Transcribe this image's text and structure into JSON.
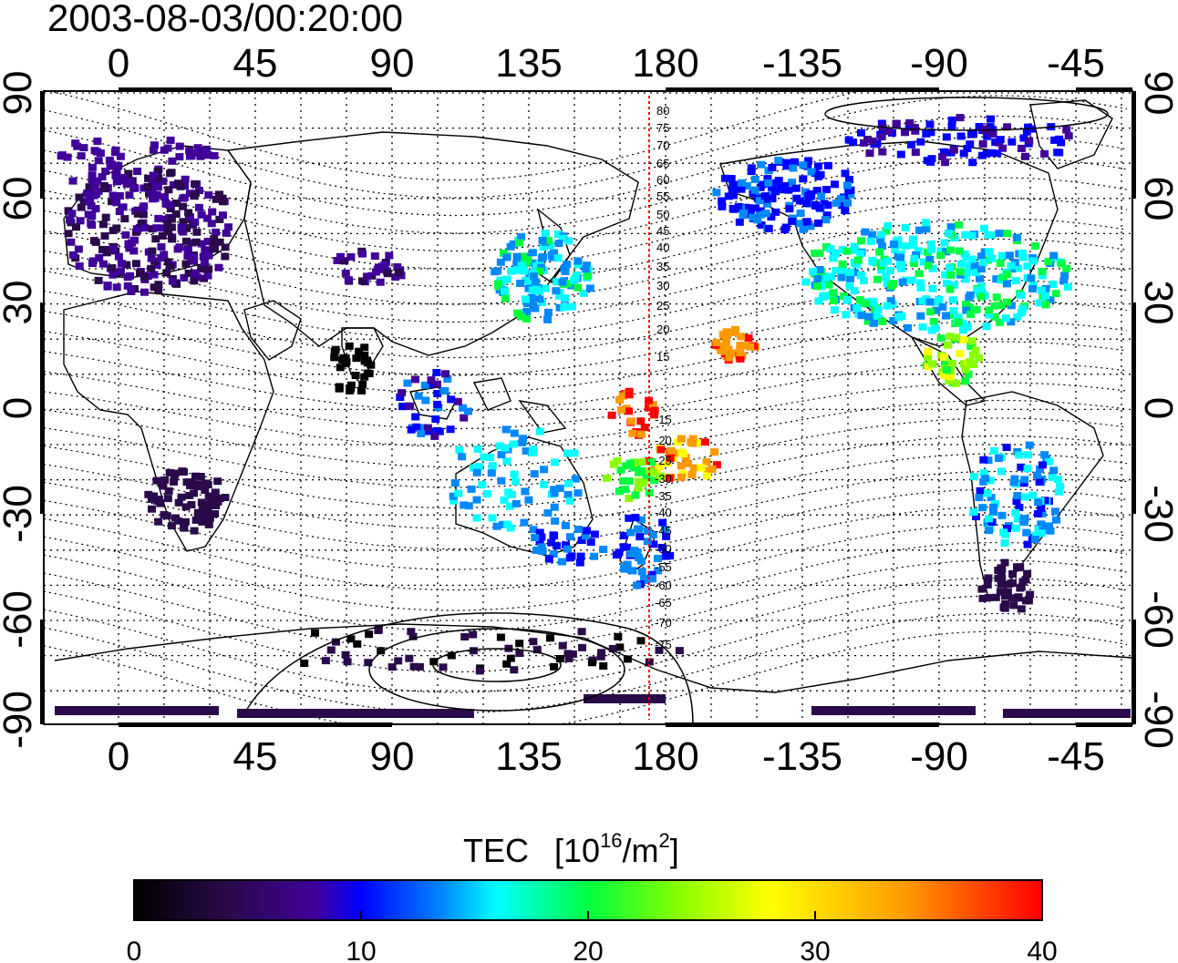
{
  "title": "2003-08-03/00:20:00",
  "lon_ticks": [
    "0",
    "45",
    "90",
    "135",
    "180",
    "-135",
    "-90",
    "-45"
  ],
  "lat_ticks": [
    "90",
    "60",
    "30",
    "0",
    "-30",
    "-60",
    "-90"
  ],
  "contour_labels": {
    "north": [
      "80",
      "75",
      "70",
      "65",
      "60",
      "55",
      "50",
      "45",
      "40",
      "35",
      "30",
      "25",
      "20",
      "15"
    ],
    "south": [
      "-15",
      "-20",
      "-25",
      "-30",
      "-35",
      "-40",
      "-45",
      "-50",
      "-55",
      "-60",
      "-65",
      "-70",
      "-75"
    ]
  },
  "colorbar": {
    "title": "TEC",
    "unit_open": "[10",
    "unit_exp": "16",
    "unit_mid": "/m",
    "unit_exp2": "2",
    "unit_close": "]",
    "ticks": [
      "0",
      "10",
      "20",
      "30",
      "40"
    ],
    "min": 0,
    "max": 40,
    "colormap": [
      "#000000",
      "#2a0a4a",
      "#40009a",
      "#0000ff",
      "#0088ff",
      "#00ffff",
      "#00ff40",
      "#88ff00",
      "#ffff00",
      "#ff9900",
      "#ff0000"
    ]
  },
  "colors": {
    "marker_line": "#ff0000",
    "frame": "#000000",
    "grid": "#000000"
  }
}
